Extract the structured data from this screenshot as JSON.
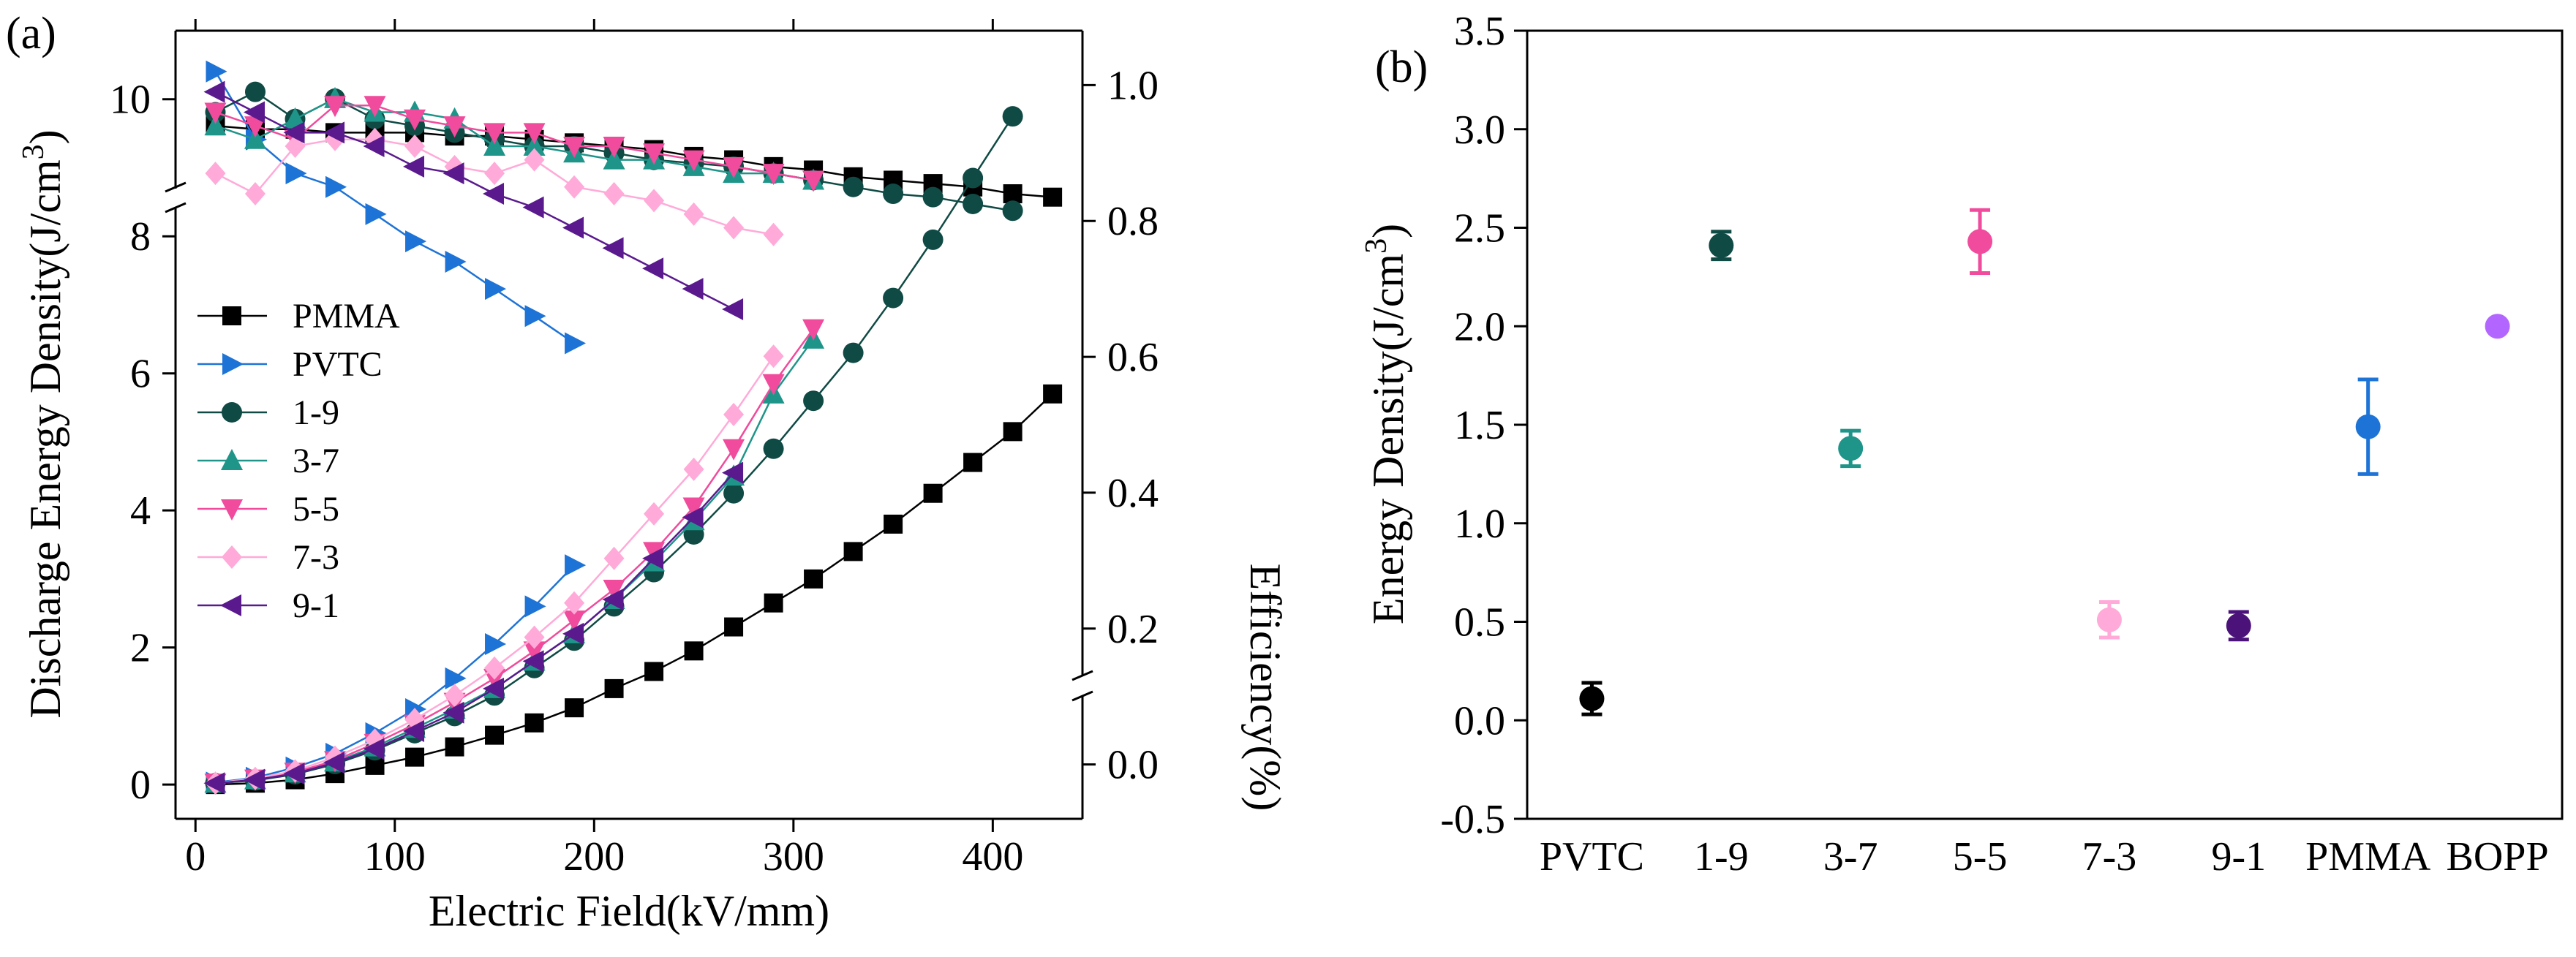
{
  "chart_data": [
    {
      "panel": "(a)",
      "type": "line",
      "xlabel": "Electric Field(kV/mm)",
      "ylabel_left": "Discharge Energy Density(J/cm3)",
      "ylabel_right": "Efficiency(%)",
      "xlim": [
        -10,
        445
      ],
      "xticks": [
        0,
        100,
        200,
        300,
        400
      ],
      "ylim_left": [
        -0.5,
        11
      ],
      "yticks_left": [
        0,
        2,
        4,
        6,
        8,
        10
      ],
      "ylim_right": [
        -0.08,
        1.08
      ],
      "yticks_right": [
        0.0,
        0.2,
        0.4,
        0.6,
        0.8,
        1.0
      ],
      "axis_break_left_at": 11,
      "axis_break_right_at": -0.08,
      "legend_location": "center-left",
      "series": [
        {
          "name": "PMMA",
          "color": "#000000",
          "marker": "square",
          "energy_x": [
            10,
            30,
            50,
            70,
            90,
            110,
            130,
            150,
            170,
            190,
            210,
            230,
            250,
            270,
            290,
            310,
            330,
            350,
            370,
            390,
            410,
            430
          ],
          "energy_y": [
            0,
            0.02,
            0.07,
            0.16,
            0.28,
            0.4,
            0.55,
            0.72,
            0.9,
            1.12,
            1.4,
            1.65,
            1.95,
            2.3,
            2.65,
            3.0,
            3.4,
            3.8,
            4.25,
            4.7,
            5.15,
            5.7
          ],
          "eff_x": [
            10,
            30,
            50,
            70,
            90,
            110,
            130,
            150,
            170,
            190,
            210,
            230,
            250,
            270,
            290,
            310,
            330,
            350,
            370,
            390,
            410,
            430
          ],
          "eff_y": [
            0.94,
            0.935,
            0.935,
            0.93,
            0.93,
            0.93,
            0.925,
            0.925,
            0.92,
            0.915,
            0.91,
            0.905,
            0.895,
            0.89,
            0.88,
            0.875,
            0.865,
            0.86,
            0.855,
            0.85,
            0.84,
            0.835
          ]
        },
        {
          "name": "PVTC",
          "color": "#1e73d6",
          "marker": "triangle-right",
          "energy_x": [
            10,
            30,
            50,
            70,
            90,
            110,
            130,
            150,
            170,
            190
          ],
          "energy_y": [
            0.03,
            0.1,
            0.25,
            0.45,
            0.75,
            1.1,
            1.55,
            2.05,
            2.6,
            3.2
          ],
          "eff_x": [
            10,
            30,
            50,
            70,
            90,
            110,
            130,
            150,
            170,
            190
          ],
          "eff_y": [
            1.02,
            0.92,
            0.87,
            0.85,
            0.81,
            0.77,
            0.74,
            0.7,
            0.66,
            0.62
          ]
        },
        {
          "name": "1-9",
          "color": "#0f4a44",
          "marker": "circle",
          "energy_x": [
            10,
            30,
            50,
            70,
            90,
            110,
            130,
            150,
            170,
            190,
            210,
            230,
            250,
            270,
            290,
            310,
            330,
            350,
            370,
            390,
            410
          ],
          "energy_y": [
            0.02,
            0.06,
            0.15,
            0.3,
            0.5,
            0.75,
            1.0,
            1.3,
            1.7,
            2.1,
            2.6,
            3.1,
            3.65,
            4.25,
            4.9,
            5.6,
            6.3,
            7.1,
            7.95,
            8.85,
            9.75
          ],
          "eff_x": [
            10,
            30,
            50,
            70,
            90,
            110,
            130,
            150,
            170,
            190,
            210,
            230,
            250,
            270,
            290,
            310,
            330,
            350,
            370,
            390,
            410
          ],
          "eff_y": [
            0.96,
            0.99,
            0.95,
            0.98,
            0.95,
            0.94,
            0.93,
            0.92,
            0.91,
            0.91,
            0.9,
            0.89,
            0.885,
            0.88,
            0.87,
            0.86,
            0.85,
            0.84,
            0.835,
            0.825,
            0.815
          ]
        },
        {
          "name": "3-7",
          "color": "#1f958a",
          "marker": "triangle-up",
          "energy_x": [
            10,
            30,
            50,
            70,
            90,
            110,
            130,
            150,
            170,
            190,
            210,
            230,
            250,
            270,
            290,
            310
          ],
          "energy_y": [
            0.02,
            0.07,
            0.17,
            0.33,
            0.55,
            0.82,
            1.1,
            1.4,
            1.8,
            2.2,
            2.7,
            3.25,
            3.85,
            4.5,
            5.7,
            6.5
          ],
          "eff_x": [
            10,
            30,
            50,
            70,
            90,
            110,
            130,
            150,
            170,
            190,
            210,
            230,
            250,
            270,
            290,
            310
          ],
          "eff_y": [
            0.94,
            0.92,
            0.95,
            0.98,
            0.96,
            0.96,
            0.95,
            0.91,
            0.91,
            0.9,
            0.89,
            0.89,
            0.88,
            0.87,
            0.87,
            0.86
          ]
        },
        {
          "name": "5-5",
          "color": "#f04b9c",
          "marker": "triangle-down",
          "energy_x": [
            10,
            30,
            50,
            70,
            90,
            110,
            130,
            150,
            170,
            190,
            210,
            230,
            250,
            270,
            290,
            310
          ],
          "energy_y": [
            0.02,
            0.08,
            0.18,
            0.35,
            0.6,
            0.88,
            1.2,
            1.55,
            1.95,
            2.4,
            2.85,
            3.4,
            4.05,
            4.9,
            5.85,
            6.65
          ],
          "eff_x": [
            10,
            30,
            50,
            70,
            90,
            110,
            130,
            150,
            170,
            190,
            210,
            230,
            250,
            270,
            290,
            310
          ],
          "eff_y": [
            0.96,
            0.94,
            0.92,
            0.97,
            0.97,
            0.95,
            0.94,
            0.93,
            0.93,
            0.91,
            0.91,
            0.9,
            0.89,
            0.88,
            0.87,
            0.86
          ]
        },
        {
          "name": "7-3",
          "color": "#ffaad8",
          "marker": "diamond",
          "energy_x": [
            10,
            30,
            50,
            70,
            90,
            110,
            130,
            150,
            170,
            190,
            210,
            230,
            250,
            270,
            290
          ],
          "energy_y": [
            0.02,
            0.09,
            0.2,
            0.4,
            0.65,
            0.95,
            1.3,
            1.7,
            2.15,
            2.65,
            3.3,
            3.95,
            4.6,
            5.4,
            6.25
          ],
          "eff_x": [
            10,
            30,
            50,
            70,
            90,
            110,
            130,
            150,
            170,
            190,
            210,
            230,
            250,
            270,
            290
          ],
          "eff_y": [
            0.87,
            0.84,
            0.91,
            0.92,
            0.92,
            0.91,
            0.88,
            0.87,
            0.89,
            0.85,
            0.84,
            0.83,
            0.81,
            0.79,
            0.78
          ]
        },
        {
          "name": "9-1",
          "color": "#5a1a8e",
          "marker": "triangle-left",
          "energy_x": [
            10,
            30,
            50,
            70,
            90,
            110,
            130,
            150,
            170,
            190,
            210,
            230,
            250,
            270
          ],
          "energy_y": [
            0.02,
            0.07,
            0.16,
            0.32,
            0.52,
            0.78,
            1.05,
            1.4,
            1.8,
            2.2,
            2.7,
            3.3,
            3.9,
            4.55
          ],
          "eff_x": [
            10,
            30,
            50,
            70,
            90,
            110,
            130,
            150,
            170,
            190,
            210,
            230,
            250,
            270
          ],
          "eff_y": [
            0.99,
            0.96,
            0.93,
            0.93,
            0.91,
            0.88,
            0.87,
            0.84,
            0.82,
            0.79,
            0.76,
            0.73,
            0.7,
            0.67
          ]
        }
      ]
    },
    {
      "panel": "(b)",
      "type": "scatter",
      "ylabel": "Energy Density(J/cm3)",
      "xlabel": "",
      "ylim": [
        -0.5,
        3.5
      ],
      "yticks": [
        -0.5,
        0.0,
        0.5,
        1.0,
        1.5,
        2.0,
        2.5,
        3.0,
        3.5
      ],
      "categories": [
        "PVTC",
        "1-9",
        "3-7",
        "5-5",
        "7-3",
        "9-1",
        "PMMA",
        "BOPP"
      ],
      "values": [
        0.11,
        2.41,
        1.38,
        2.43,
        0.51,
        0.48,
        1.49,
        2.0
      ],
      "errors": [
        0.08,
        0.07,
        0.09,
        0.16,
        0.09,
        0.07,
        0.24,
        0
      ],
      "colors": [
        "#000000",
        "#0f4a44",
        "#1f958a",
        "#f04b9c",
        "#ffaad8",
        "#4b137a",
        "#1e73d6",
        "#b366ff"
      ]
    }
  ]
}
